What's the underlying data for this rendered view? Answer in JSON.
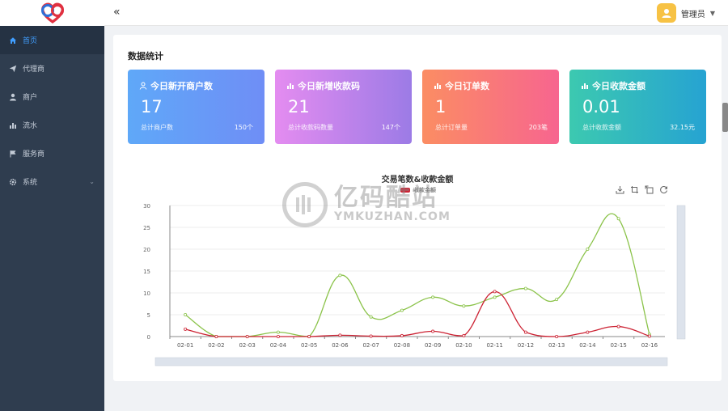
{
  "header": {
    "collapse_icon": "«",
    "user_name": "管理员",
    "caret": "▼"
  },
  "sidebar": {
    "items": [
      {
        "label": "首页",
        "icon": "home-icon",
        "active": true
      },
      {
        "label": "代理商",
        "icon": "send-icon"
      },
      {
        "label": "商户",
        "icon": "user-icon"
      },
      {
        "label": "流水",
        "icon": "bar-chart-icon"
      },
      {
        "label": "服务商",
        "icon": "flag-icon"
      },
      {
        "label": "系统",
        "icon": "gear-icon",
        "has_arrow": true,
        "arrow": "⌄"
      }
    ]
  },
  "main": {
    "title": "数据统计",
    "cards": [
      {
        "title": "今日新开商户数",
        "value": "17",
        "foot_label": "总计商户数",
        "foot_value": "150个",
        "icon": "user-outline-icon"
      },
      {
        "title": "今日新增收款码",
        "value": "21",
        "foot_label": "总计收款码数量",
        "foot_value": "147个",
        "icon": "bar-chart-icon"
      },
      {
        "title": "今日订单数",
        "value": "1",
        "foot_label": "总计订单量",
        "foot_value": "203笔",
        "icon": "bar-chart-icon"
      },
      {
        "title": "今日收款金额",
        "value": "0.01",
        "foot_label": "总计收款金额",
        "foot_value": "32.15元",
        "icon": "bar-chart-icon"
      }
    ]
  },
  "watermark": {
    "big": "亿码酷站",
    "small": "YMKUZHAN.COM"
  },
  "colors": {
    "green_series": "#8bc34a",
    "red_series": "#cc2233",
    "sidebar_bg": "#2f3d4f",
    "accent": "#409eff"
  },
  "chart_data": {
    "type": "line",
    "title": "交易笔数&收款金额",
    "legend": [
      "收款金额"
    ],
    "categories": [
      "02-01",
      "02-02",
      "02-03",
      "02-04",
      "02-05",
      "02-06",
      "02-07",
      "02-08",
      "02-09",
      "02-10",
      "02-11",
      "02-12",
      "02-13",
      "02-14",
      "02-15",
      "02-16"
    ],
    "series": [
      {
        "values": [
          5,
          0,
          0,
          1,
          0,
          14,
          4.5,
          6,
          9,
          7,
          9,
          11,
          8.5,
          20,
          27,
          0.5
        ],
        "color": "#8bc34a"
      },
      {
        "name": "收款金额",
        "values": [
          1.7,
          0,
          0,
          0,
          0,
          0.3,
          0.1,
          0.2,
          1.2,
          0.2,
          10.3,
          1,
          0,
          1,
          2.3,
          0.1
        ],
        "color": "#cc2233"
      }
    ],
    "ylim": [
      0,
      30
    ],
    "yticks": [
      "0",
      "5",
      "10",
      "15",
      "20",
      "25",
      "30"
    ]
  }
}
